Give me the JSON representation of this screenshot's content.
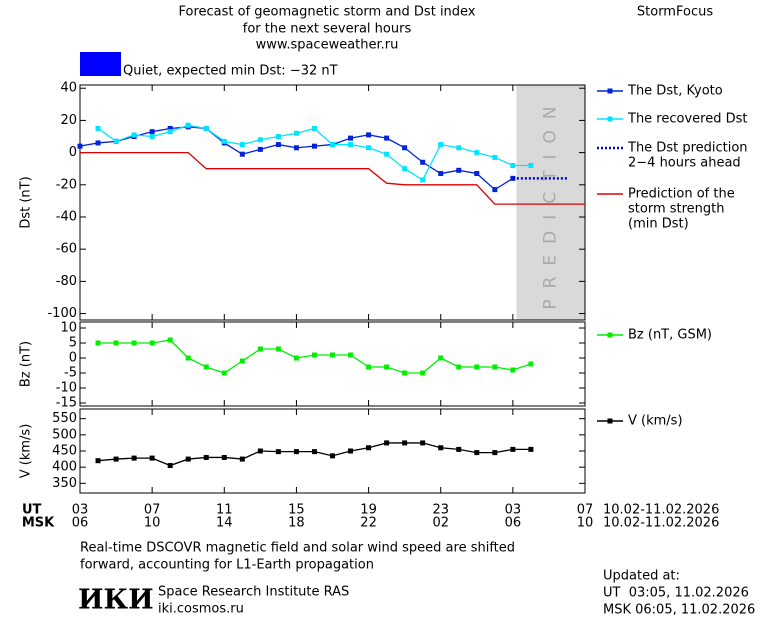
{
  "header": {
    "title_lines": [
      "Forecast of geomagnetic storm and Dst index",
      "for the next several hours",
      "www.spaceweather.ru"
    ],
    "brand": "StormFocus",
    "status": {
      "color": "#0000ff",
      "text": "Quiet, expected min Dst: −32 nT"
    }
  },
  "chart_data": [
    {
      "type": "line",
      "ylabel": "Dst (nT)",
      "xlim": [
        0,
        28
      ],
      "ylim": [
        -104,
        42
      ],
      "yticks": [
        40,
        20,
        0,
        -20,
        -40,
        -60,
        -80,
        -100
      ],
      "shade": {
        "x": [
          24.2,
          28
        ],
        "color": "#d9d9d9",
        "label": "PREDICTION"
      },
      "series": [
        {
          "name_lines": [
            "The Dst, Kyoto"
          ],
          "color": "#0022dd",
          "marker": "square",
          "line_style": "solid",
          "x": [
            0,
            1,
            2,
            3,
            4,
            5,
            6,
            7,
            8,
            9,
            10,
            11,
            12,
            13,
            14,
            15,
            16,
            17,
            18,
            19,
            20,
            21,
            22,
            23,
            24
          ],
          "values": [
            4,
            6,
            7,
            10,
            13,
            15,
            16,
            15,
            6,
            -1,
            2,
            5,
            3,
            4,
            5,
            9,
            11,
            9,
            3,
            -6,
            -13,
            -11,
            -13,
            -23,
            -16
          ]
        },
        {
          "name_lines": [
            "The recovered Dst"
          ],
          "color": "#00e5ff",
          "marker": "square",
          "line_style": "solid",
          "x": [
            1,
            2,
            3,
            4,
            5,
            6,
            7,
            8,
            9,
            10,
            11,
            12,
            13,
            14,
            15,
            16,
            17,
            18,
            19,
            20,
            21,
            22,
            23,
            24,
            25
          ],
          "values": [
            15,
            7,
            11,
            10,
            13,
            17,
            15,
            7,
            5,
            8,
            10,
            12,
            15,
            5,
            5,
            3,
            -1,
            -10,
            -17,
            5,
            3,
            0,
            -3,
            -8,
            -8
          ]
        },
        {
          "name_lines": [
            "The Dst prediction",
            "2−4 hours ahead"
          ],
          "color": "#0000cc",
          "line_style": "dotted",
          "x": [
            24,
            27
          ],
          "values": [
            -16,
            -16
          ]
        },
        {
          "name_lines": [
            "Prediction of the",
            "storm strength",
            "(min Dst)"
          ],
          "color": "#dd0000",
          "line_style": "solid",
          "x": [
            0,
            6,
            7,
            16,
            17,
            18,
            22,
            23,
            28
          ],
          "values": [
            0,
            0,
            -10,
            -10,
            -19,
            -20,
            -20,
            -32,
            -32
          ]
        }
      ]
    },
    {
      "type": "line",
      "ylabel": "Bz (nT)",
      "xlim": [
        0,
        28
      ],
      "ylim": [
        -16,
        12
      ],
      "yticks": [
        10,
        5,
        0,
        -5,
        -10,
        -15
      ],
      "series": [
        {
          "name_lines": [
            "Bz (nT, GSM)"
          ],
          "color": "#00ee00",
          "marker": "square",
          "line_style": "solid",
          "x": [
            1,
            2,
            3,
            4,
            5,
            6,
            7,
            8,
            9,
            10,
            11,
            12,
            13,
            14,
            15,
            16,
            17,
            18,
            19,
            20,
            21,
            22,
            23,
            24,
            25
          ],
          "values": [
            5,
            5,
            5,
            5,
            6,
            0,
            -3,
            -5,
            -1,
            3,
            3,
            0,
            1,
            1,
            1,
            -3,
            -3,
            -5,
            -5,
            0,
            -3,
            -3,
            -3,
            -4,
            -2
          ]
        }
      ]
    },
    {
      "type": "line",
      "ylabel": "V (km/s)",
      "xlim": [
        0,
        28
      ],
      "ylim": [
        320,
        580
      ],
      "yticks": [
        550,
        500,
        450,
        400,
        350
      ],
      "series": [
        {
          "name_lines": [
            "V (km/s)"
          ],
          "color": "#000000",
          "marker": "square",
          "line_style": "solid",
          "x": [
            1,
            2,
            3,
            4,
            5,
            6,
            7,
            8,
            9,
            10,
            11,
            12,
            13,
            14,
            15,
            16,
            17,
            18,
            19,
            20,
            21,
            22,
            23,
            24,
            25
          ],
          "values": [
            420,
            425,
            428,
            428,
            405,
            425,
            430,
            430,
            425,
            450,
            448,
            448,
            448,
            435,
            450,
            460,
            475,
            475,
            475,
            460,
            455,
            445,
            445,
            455,
            455
          ]
        }
      ],
      "xlabel": "UT",
      "xlabel_msk": "MSK",
      "xticks": [
        {
          "value": 0,
          "label": "03"
        },
        {
          "value": 4,
          "label": "07"
        },
        {
          "value": 8,
          "label": "11"
        },
        {
          "value": 12,
          "label": "15"
        },
        {
          "value": 16,
          "label": "19"
        },
        {
          "value": 20,
          "label": "23"
        },
        {
          "value": 24,
          "label": "03"
        },
        {
          "value": 28,
          "label": "07"
        }
      ],
      "xticks_msk": [
        {
          "value": 0,
          "label": "06"
        },
        {
          "value": 4,
          "label": "10"
        },
        {
          "value": 8,
          "label": "14"
        },
        {
          "value": 12,
          "label": "18"
        },
        {
          "value": 16,
          "label": "22"
        },
        {
          "value": 20,
          "label": "02"
        },
        {
          "value": 24,
          "label": "06"
        },
        {
          "value": 28,
          "label": "10"
        }
      ],
      "date_range": "10.02-11.02.2026",
      "date_range_msk": "10.02-11.02.2026"
    }
  ],
  "footer": {
    "note_lines": [
      "Real-time DSCOVR magnetic field and solar wind speed are shifted",
      "forward, accounting for L1-Earth propagation"
    ],
    "logo": "ИКИ",
    "institute": "Space Research Institute RAS",
    "website": "iki.cosmos.ru",
    "updated_label": "Updated at:",
    "updated_ut": "UT  03:05, 11.02.2026",
    "updated_msk": "MSK 06:05, 11.02.2026"
  }
}
